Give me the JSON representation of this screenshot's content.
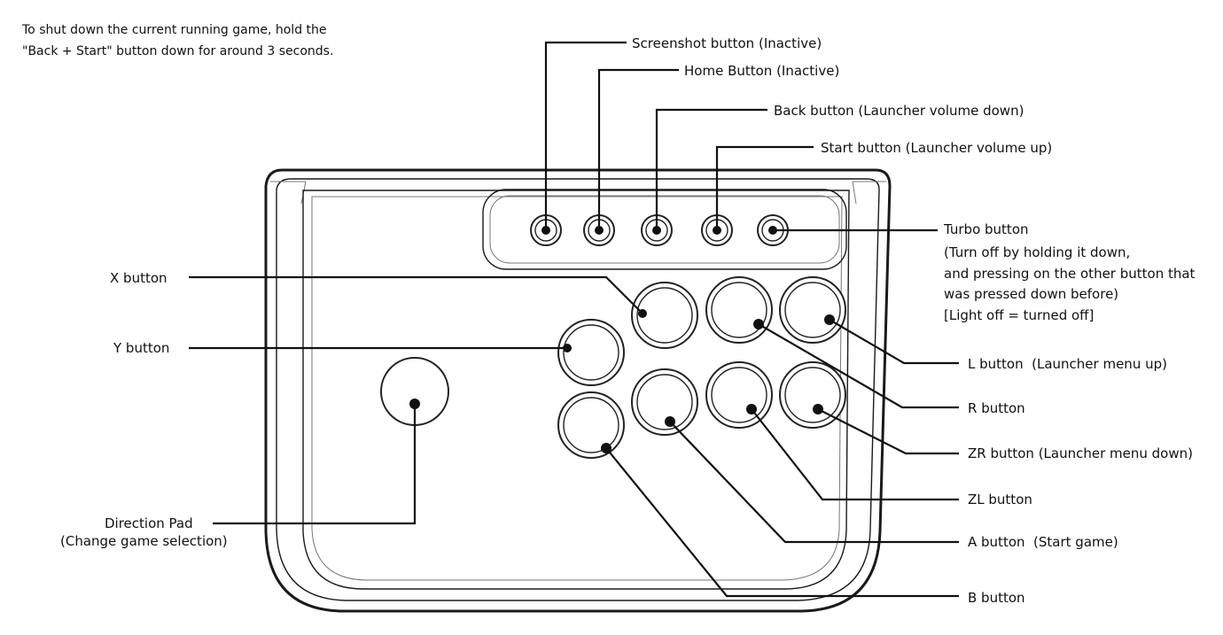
{
  "note": {
    "lines": [
      "To shut down the current running game, hold the",
      "\"Back + Start\" button down for around 3 seconds."
    ]
  },
  "labels": {
    "screenshot": "Screenshot button (Inactive)",
    "home": "Home Button (Inactive)",
    "back": "Back button (Launcher volume down)",
    "start": "Start button (Launcher volume up)",
    "turbo": [
      "Turbo button",
      "(Turn off by holding it down,",
      "and pressing on the other button that",
      "was pressed down before)",
      "[Light off = turned off]"
    ],
    "x": "X button",
    "y": "Y button",
    "direction": [
      "Direction Pad",
      "(Change game selection)"
    ],
    "l": "L button  (Launcher menu up)",
    "r": "R button",
    "zr": "ZR button (Launcher menu down)",
    "zl": "ZL button",
    "a": "A button  (Start game)",
    "b": "B button"
  }
}
